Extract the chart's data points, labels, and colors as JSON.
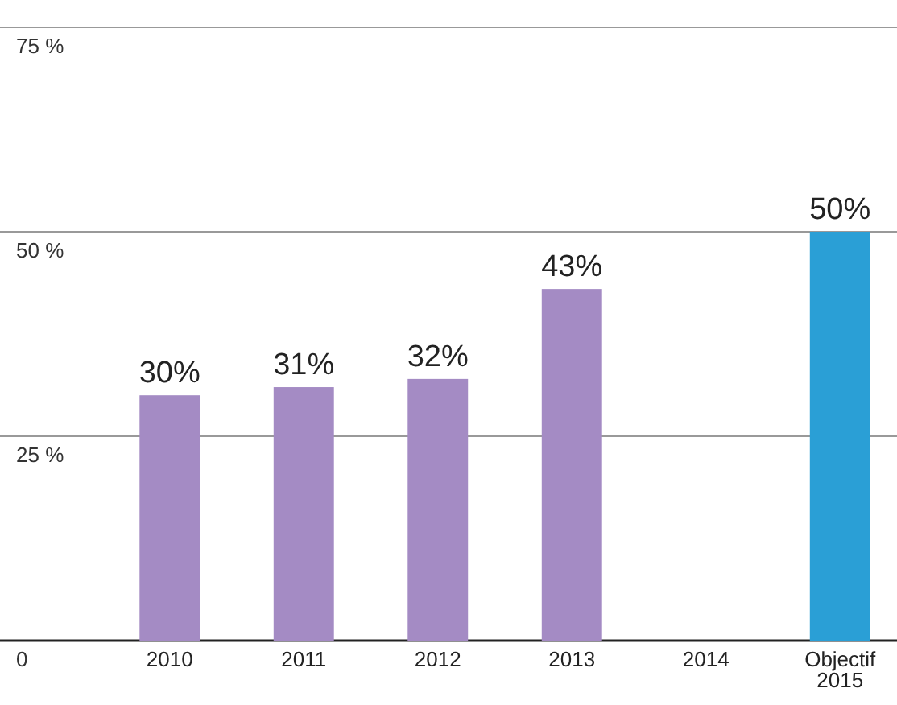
{
  "chart_data": {
    "type": "bar",
    "categories": [
      "2010",
      "2011",
      "2012",
      "2013",
      "2014",
      "Objectif 2015"
    ],
    "values": [
      30,
      31,
      32,
      43,
      null,
      50
    ],
    "colors": [
      "#a48bc4",
      "#a48bc4",
      "#a48bc4",
      "#a48bc4",
      null,
      "#2a9fd6"
    ],
    "value_labels": [
      "30%",
      "31%",
      "32%",
      "43%",
      null,
      "50%"
    ],
    "ylim": [
      0,
      75
    ],
    "yticks": [
      {
        "value": 0,
        "label": "0"
      },
      {
        "value": 25,
        "label": "25 %"
      },
      {
        "value": 50,
        "label": "50 %"
      },
      {
        "value": 75,
        "label": "75 %"
      }
    ],
    "grid": "y"
  }
}
